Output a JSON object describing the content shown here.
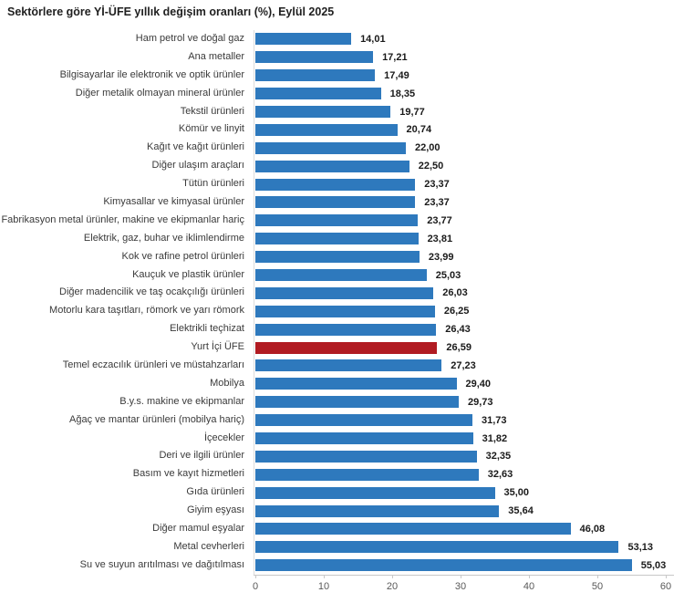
{
  "chart_data": {
    "type": "bar",
    "orientation": "horizontal",
    "title": "Sektörlere göre Yİ-ÜFE yıllık değişim oranları (%), Eylül 2025",
    "categories": [
      "Ham petrol ve doğal gaz",
      "Ana metaller",
      "Bilgisayarlar ile elektronik ve optik ürünler",
      "Diğer metalik olmayan mineral ürünler",
      "Tekstil ürünleri",
      "Kömür ve linyit",
      "Kağıt ve kağıt ürünleri",
      "Diğer ulaşım araçları",
      "Tütün ürünleri",
      "Kimyasallar ve kimyasal ürünler",
      "Fabrikasyon metal ürünler, makine ve ekipmanlar hariç",
      "Elektrik, gaz, buhar ve iklimlendirme",
      "Kok ve rafine petrol ürünleri",
      "Kauçuk ve plastik ürünler",
      "Diğer madencilik ve taş ocakçılığı ürünleri",
      "Motorlu kara taşıtları, römork ve yarı römork",
      "Elektrikli teçhizat",
      "Yurt İçi ÜFE",
      "Temel eczacılık ürünleri ve müstahzarları",
      "Mobilya",
      "B.y.s. makine ve ekipmanlar",
      "Ağaç ve mantar ürünleri (mobilya hariç)",
      "İçecekler",
      "Deri ve ilgili ürünler",
      "Basım ve kayıt hizmetleri",
      "Gıda ürünleri",
      "Giyim eşyası",
      "Diğer mamul eşyalar",
      "Metal cevherleri",
      "Su ve suyun arıtılması ve dağıtılması"
    ],
    "values": [
      14.01,
      17.21,
      17.49,
      18.35,
      19.77,
      20.74,
      22.0,
      22.5,
      23.37,
      23.37,
      23.77,
      23.81,
      23.99,
      25.03,
      26.03,
      26.25,
      26.43,
      26.59,
      27.23,
      29.4,
      29.73,
      31.73,
      31.82,
      32.35,
      32.63,
      35.0,
      35.64,
      46.08,
      53.13,
      55.03
    ],
    "value_labels": [
      "14,01",
      "17,21",
      "17,49",
      "18,35",
      "19,77",
      "20,74",
      "22,00",
      "22,50",
      "23,37",
      "23,37",
      "23,77",
      "23,81",
      "23,99",
      "25,03",
      "26,03",
      "26,25",
      "26,43",
      "26,59",
      "27,23",
      "29,40",
      "29,73",
      "31,73",
      "31,82",
      "32,35",
      "32,63",
      "35,00",
      "35,64",
      "46,08",
      "53,13",
      "55,03"
    ],
    "highlight_category": "Yurt İçi ÜFE",
    "bar_color": "#2e79bd",
    "highlight_color": "#b11b22",
    "xlabel": "",
    "ylabel": "",
    "xlim": [
      0,
      60
    ],
    "x_ticks": [
      0,
      10,
      20,
      30,
      40,
      50,
      60
    ],
    "grid": false,
    "legend": "none"
  }
}
